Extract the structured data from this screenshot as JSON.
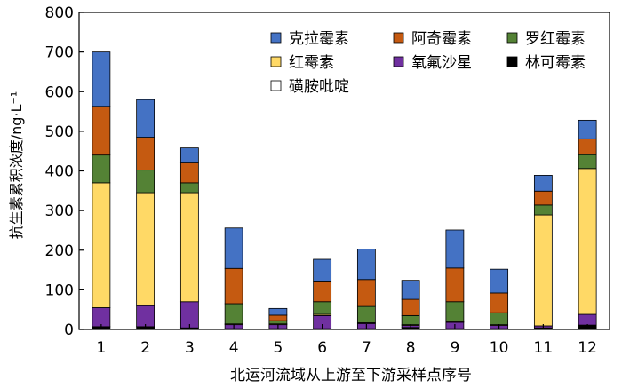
{
  "chart_data": {
    "type": "bar",
    "stacked": true,
    "xlabel": "北运河流域从上游至下游采样点序号",
    "ylabel": "抗生素累积浓度/ng·L⁻¹",
    "ylim": [
      0,
      800
    ],
    "yticks": [
      0,
      100,
      200,
      300,
      400,
      500,
      600,
      700,
      800
    ],
    "categories": [
      "1",
      "2",
      "3",
      "4",
      "5",
      "6",
      "7",
      "8",
      "9",
      "10",
      "11",
      "12"
    ],
    "legend_placement": "top-right",
    "grid": false,
    "series": [
      {
        "name": "磺胺吡啶",
        "color": "#ffffff",
        "values": [
          1,
          1,
          1,
          1,
          1,
          1,
          1,
          1,
          1,
          1,
          1,
          1
        ]
      },
      {
        "name": "林可霉素",
        "color": "#000000",
        "values": [
          6,
          6,
          3,
          1,
          1,
          1,
          1,
          4,
          1,
          1,
          3,
          10
        ]
      },
      {
        "name": "氧氟沙星",
        "color": "#7030a0",
        "values": [
          48,
          53,
          66,
          10,
          10,
          33,
          13,
          5,
          16,
          8,
          5,
          27
        ]
      },
      {
        "name": "红霉素",
        "color": "#ffd966",
        "values": [
          315,
          285,
          275,
          2,
          2,
          3,
          2,
          2,
          2,
          2,
          280,
          368
        ]
      },
      {
        "name": "罗红霉素",
        "color": "#548235",
        "values": [
          70,
          57,
          25,
          51,
          8,
          32,
          41,
          23,
          50,
          30,
          25,
          35
        ]
      },
      {
        "name": "阿奇霉素",
        "color": "#c55a11",
        "values": [
          123,
          83,
          50,
          89,
          14,
          50,
          68,
          41,
          85,
          50,
          35,
          40
        ]
      },
      {
        "name": "克拉霉素",
        "color": "#4472c4",
        "values": [
          137,
          95,
          38,
          102,
          17,
          57,
          77,
          48,
          96,
          60,
          40,
          47
        ]
      }
    ]
  }
}
